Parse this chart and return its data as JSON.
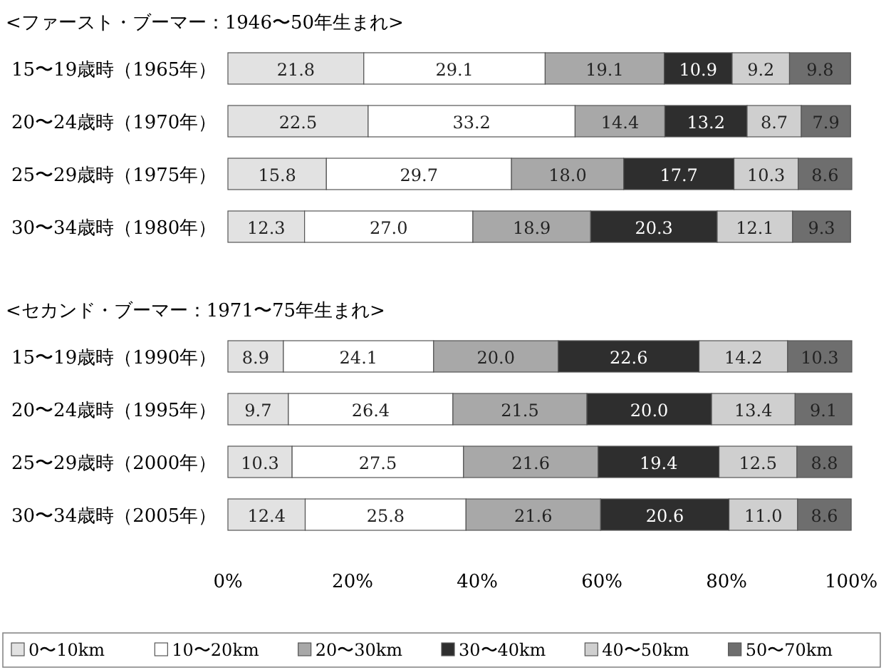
{
  "chart_data": [
    {
      "type": "bar",
      "title": "<ファースト・ブーマー：1946〜50年生まれ>",
      "orientation": "horizontal",
      "stacked": true,
      "tick_labels": "y",
      "xlim": [
        0,
        100.1
      ],
      "categories": [
        "15〜19歳時（1965年）",
        "20〜24歳時（1970年）",
        "25〜29歳時（1975年）",
        "30〜34歳時（1980年）"
      ],
      "series": [
        {
          "color": "#e2e2e2",
          "values": [
            21.8,
            22.5,
            15.8,
            12.3
          ],
          "value_labels": [
            "21.8",
            "22.5",
            "15.8",
            "12.3"
          ]
        },
        {
          "color": "#ffffff",
          "values": [
            29.1,
            33.2,
            29.7,
            27.0
          ],
          "value_labels": [
            "29.1",
            "33.2",
            "29.7",
            "27.0"
          ]
        },
        {
          "color": "#a8a8a8",
          "values": [
            19.1,
            14.4,
            18.0,
            18.9
          ],
          "value_labels": [
            "19.1",
            "14.4",
            "18.0",
            "18.9"
          ]
        },
        {
          "color": "#2e2e2e",
          "values": [
            10.9,
            13.2,
            17.7,
            20.3
          ],
          "value_labels": [
            "10.9",
            "13.2",
            "17.7",
            "20.3"
          ]
        },
        {
          "color": "#cfcfcf",
          "values": [
            9.2,
            8.7,
            10.3,
            12.1
          ],
          "value_labels": [
            "9.2",
            "8.7",
            "10.3",
            "12.1"
          ]
        },
        {
          "color": "#6e6e6e",
          "values": [
            9.8,
            7.9,
            8.6,
            9.3
          ],
          "value_labels": [
            "9.8",
            "7.9",
            "8.6",
            "9.3"
          ]
        }
      ]
    },
    {
      "type": "bar",
      "title": "<セカンド・ブーマー：1971〜75年生まれ>",
      "orientation": "horizontal",
      "stacked": true,
      "legend": "bottom",
      "xlim": [
        0,
        100.1
      ],
      "xticks": [
        {
          "value": 0,
          "label": "0%"
        },
        {
          "value": 20,
          "label": "20%"
        },
        {
          "value": 40,
          "label": "40%"
        },
        {
          "value": 60,
          "label": "60%"
        },
        {
          "value": 80,
          "label": "80%"
        },
        {
          "value": 100,
          "label": "100%"
        }
      ],
      "categories": [
        "15〜19歳時（1990年）",
        "20〜24歳時（1995年）",
        "25〜29歳時（2000年）",
        "30〜34歳時（2005年）"
      ],
      "series": [
        {
          "name": "0〜10km",
          "color": "#e2e2e2",
          "values": [
            8.9,
            9.7,
            10.3,
            12.4
          ],
          "value_labels": [
            "8.9",
            "9.7",
            "10.3",
            "12.4"
          ]
        },
        {
          "name": "10〜20km",
          "color": "#ffffff",
          "values": [
            24.1,
            26.4,
            27.5,
            25.8
          ],
          "value_labels": [
            "24.1",
            "26.4",
            "27.5",
            "25.8"
          ]
        },
        {
          "name": "20〜30km",
          "color": "#a8a8a8",
          "values": [
            20.0,
            21.5,
            21.6,
            21.6
          ],
          "value_labels": [
            "20.0",
            "21.5",
            "21.6",
            "21.6"
          ]
        },
        {
          "name": "30〜40km",
          "color": "#2e2e2e",
          "values": [
            22.6,
            20.0,
            19.4,
            20.6
          ],
          "value_labels": [
            "22.6",
            "20.0",
            "19.4",
            "20.6"
          ]
        },
        {
          "name": "40〜50km",
          "color": "#cfcfcf",
          "values": [
            14.2,
            13.4,
            12.5,
            11.0
          ],
          "value_labels": [
            "14.2",
            "13.4",
            "12.5",
            "11.0"
          ]
        },
        {
          "name": "50〜70km",
          "color": "#6e6e6e",
          "values": [
            10.3,
            9.1,
            8.8,
            8.6
          ],
          "value_labels": [
            "10.3",
            "9.1",
            "8.8",
            "8.6"
          ]
        }
      ]
    }
  ]
}
